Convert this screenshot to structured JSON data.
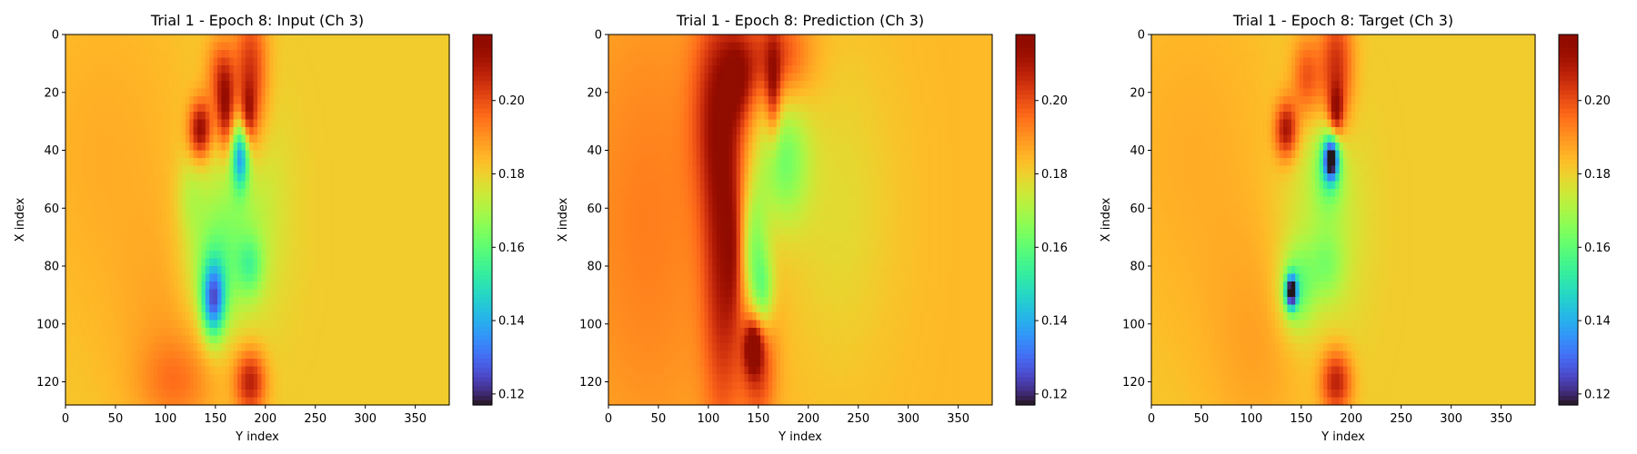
{
  "chart_data": [
    {
      "type": "heatmap",
      "title": "Trial 1 - Epoch 8: Input (Ch 3)",
      "xlabel": "Y index",
      "ylabel": "X index",
      "xticks": [
        "0",
        "50",
        "100",
        "150",
        "200",
        "250",
        "300",
        "350"
      ],
      "yticks": [
        "0",
        "20",
        "40",
        "60",
        "80",
        "100",
        "120"
      ],
      "xlim": [
        0,
        384
      ],
      "ylim": [
        128,
        0
      ],
      "colorbar": {
        "ticks": [
          "0.12",
          "0.14",
          "0.16",
          "0.18",
          "0.20"
        ],
        "range": [
          0.117,
          0.218
        ],
        "colormap": "turbo"
      },
      "grid": false,
      "field": {
        "background": 0.181,
        "features": [
          {
            "x": 40,
            "y": 40,
            "sx": 70,
            "sy": 50,
            "v": 0.005
          },
          {
            "x": 110,
            "y": 110,
            "sx": 40,
            "sy": 30,
            "v": 0.006
          },
          {
            "x": 185,
            "y": 15,
            "sx": 12,
            "sy": 18,
            "v": 0.025
          },
          {
            "x": 155,
            "y": 15,
            "sx": 10,
            "sy": 10,
            "v": 0.018
          },
          {
            "x": 135,
            "y": 33,
            "sx": 8,
            "sy": 7,
            "v": 0.033
          },
          {
            "x": 160,
            "y": 27,
            "sx": 6,
            "sy": 10,
            "v": 0.025
          },
          {
            "x": 183,
            "y": 28,
            "sx": 5,
            "sy": 7,
            "v": 0.018
          },
          {
            "x": 185,
            "y": 120,
            "sx": 11,
            "sy": 8,
            "v": 0.027
          },
          {
            "x": 110,
            "y": 120,
            "sx": 25,
            "sy": 10,
            "v": 0.008
          },
          {
            "x": 175,
            "y": 42,
            "sx": 6,
            "sy": 8,
            "v": -0.04
          },
          {
            "x": 175,
            "y": 62,
            "sx": 30,
            "sy": 28,
            "v": -0.012
          },
          {
            "x": 148,
            "y": 92,
            "sx": 8,
            "sy": 9,
            "v": -0.045
          },
          {
            "x": 148,
            "y": 80,
            "sx": 20,
            "sy": 15,
            "v": -0.015
          },
          {
            "x": 185,
            "y": 80,
            "sx": 9,
            "sy": 7,
            "v": -0.015
          },
          {
            "x": 125,
            "y": 55,
            "sx": 10,
            "sy": 10,
            "v": -0.008
          }
        ]
      }
    },
    {
      "type": "heatmap",
      "title": "Trial 1 - Epoch 8: Prediction (Ch 3)",
      "xlabel": "Y index",
      "ylabel": "X index",
      "xticks": [
        "0",
        "50",
        "100",
        "150",
        "200",
        "250",
        "300",
        "350"
      ],
      "yticks": [
        "0",
        "20",
        "40",
        "60",
        "80",
        "100",
        "120"
      ],
      "xlim": [
        0,
        384
      ],
      "ylim": [
        128,
        0
      ],
      "colorbar": {
        "ticks": [
          "0.12",
          "0.14",
          "0.16",
          "0.18",
          "0.20"
        ],
        "range": [
          0.117,
          0.218
        ],
        "colormap": "turbo"
      },
      "grid": false,
      "field": {
        "background": 0.184,
        "features": [
          {
            "x": 40,
            "y": 64,
            "sx": 60,
            "sy": 64,
            "v": 0.009
          },
          {
            "x": 110,
            "y": 25,
            "sx": 18,
            "sy": 25,
            "v": 0.02
          },
          {
            "x": 115,
            "y": 80,
            "sx": 14,
            "sy": 40,
            "v": 0.022
          },
          {
            "x": 150,
            "y": 112,
            "sx": 12,
            "sy": 16,
            "v": 0.02
          },
          {
            "x": 165,
            "y": 8,
            "sx": 25,
            "sy": 12,
            "v": 0.02
          },
          {
            "x": 130,
            "y": 15,
            "sx": 10,
            "sy": 10,
            "v": 0.015
          },
          {
            "x": 165,
            "y": 20,
            "sx": 5,
            "sy": 12,
            "v": 0.02
          },
          {
            "x": 145,
            "y": 108,
            "sx": 6,
            "sy": 6,
            "v": 0.03
          },
          {
            "x": 125,
            "y": 75,
            "sx": 6,
            "sy": 15,
            "v": 0.01
          },
          {
            "x": 175,
            "y": 43,
            "sx": 18,
            "sy": 16,
            "v": -0.02
          },
          {
            "x": 145,
            "y": 75,
            "sx": 10,
            "sy": 18,
            "v": -0.02
          },
          {
            "x": 230,
            "y": 60,
            "sx": 40,
            "sy": 40,
            "v": -0.006
          },
          {
            "x": 155,
            "y": 90,
            "sx": 8,
            "sy": 10,
            "v": -0.02
          }
        ]
      }
    },
    {
      "type": "heatmap",
      "title": "Trial 1 - Epoch 8: Target (Ch 3)",
      "xlabel": "Y index",
      "ylabel": "X index",
      "xticks": [
        "0",
        "50",
        "100",
        "150",
        "200",
        "250",
        "300",
        "350"
      ],
      "yticks": [
        "0",
        "20",
        "40",
        "60",
        "80",
        "100",
        "120"
      ],
      "xlim": [
        0,
        384
      ],
      "ylim": [
        128,
        0
      ],
      "colorbar": {
        "ticks": [
          "0.12",
          "0.14",
          "0.16",
          "0.18",
          "0.20"
        ],
        "range": [
          0.117,
          0.218
        ],
        "colormap": "turbo"
      },
      "grid": false,
      "field": {
        "background": 0.181,
        "features": [
          {
            "x": 40,
            "y": 40,
            "sx": 70,
            "sy": 50,
            "v": 0.005
          },
          {
            "x": 110,
            "y": 110,
            "sx": 40,
            "sy": 30,
            "v": 0.006
          },
          {
            "x": 185,
            "y": 12,
            "sx": 12,
            "sy": 16,
            "v": 0.025
          },
          {
            "x": 155,
            "y": 15,
            "sx": 10,
            "sy": 10,
            "v": 0.018
          },
          {
            "x": 135,
            "y": 33,
            "sx": 8,
            "sy": 7,
            "v": 0.03
          },
          {
            "x": 185,
            "y": 27,
            "sx": 5,
            "sy": 6,
            "v": 0.025
          },
          {
            "x": 185,
            "y": 120,
            "sx": 11,
            "sy": 8,
            "v": 0.027
          },
          {
            "x": 180,
            "y": 43,
            "sx": 5,
            "sy": 5,
            "v": -0.055
          },
          {
            "x": 178,
            "y": 45,
            "sx": 10,
            "sy": 10,
            "v": -0.02
          },
          {
            "x": 170,
            "y": 65,
            "sx": 30,
            "sy": 30,
            "v": -0.01
          },
          {
            "x": 140,
            "y": 89,
            "sx": 4,
            "sy": 4,
            "v": -0.06
          },
          {
            "x": 145,
            "y": 88,
            "sx": 12,
            "sy": 10,
            "v": -0.02
          },
          {
            "x": 175,
            "y": 80,
            "sx": 12,
            "sy": 8,
            "v": -0.01
          }
        ]
      }
    }
  ]
}
